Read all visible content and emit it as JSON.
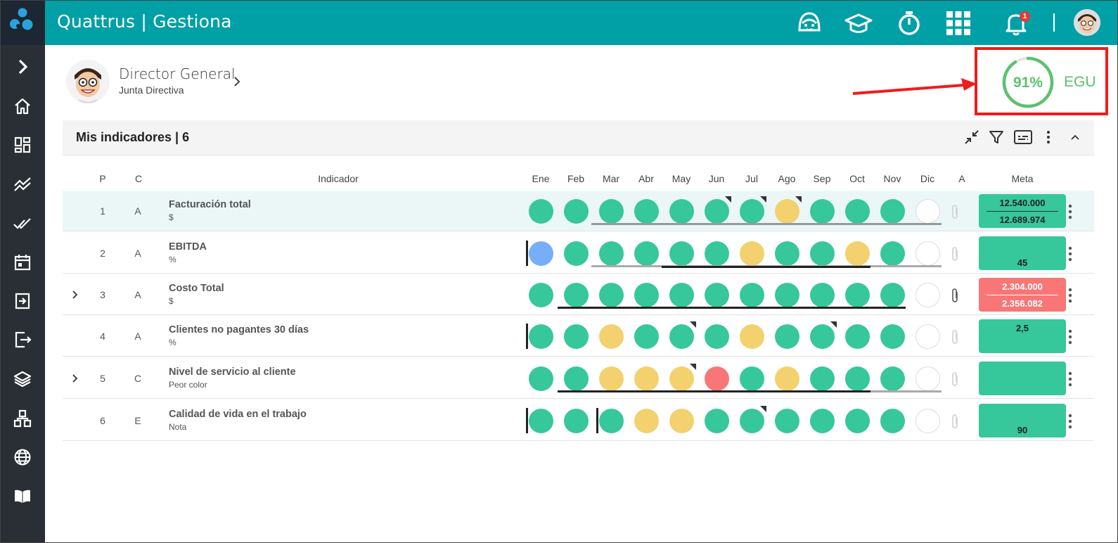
{
  "app": {
    "title": "Quattrus | Gestiona"
  },
  "topbar": {
    "icons": [
      "support-face-icon",
      "graduation-cap-icon",
      "stopwatch-icon",
      "apps-grid-icon",
      "bell-icon",
      "user-avatar"
    ],
    "notification_count": "1"
  },
  "sidebar": {
    "items": [
      "expand-chevron-icon",
      "home-icon",
      "dashboard-icon",
      "trend-icon",
      "double-check-icon",
      "calendar-icon",
      "login-icon",
      "logout-icon",
      "layers-icon",
      "org-chart-icon",
      "globe-icon",
      "book-icon"
    ]
  },
  "user": {
    "name": "Director General",
    "role": "Junta Directiva"
  },
  "score": {
    "percent": "91%",
    "label": "EGU",
    "value": 0.91,
    "color": "#5cc16e"
  },
  "panel": {
    "title": "Mis indicadores | 6"
  },
  "columns": {
    "p": "P",
    "c": "C",
    "indicator": "Indicador",
    "months": [
      "Ene",
      "Feb",
      "Mar",
      "Abr",
      "May",
      "Jun",
      "Jul",
      "Ago",
      "Sep",
      "Oct",
      "Nov",
      "Dic"
    ],
    "a": "A",
    "meta": "Meta"
  },
  "rows": [
    {
      "p": "1",
      "c": "A",
      "name": "Facturación total",
      "unit": "$",
      "meta_top": "12.540.000",
      "meta_bottom": "12.689.974",
      "meta_status": "green",
      "expandable": false
    },
    {
      "p": "2",
      "c": "A",
      "name": "EBITDA",
      "unit": "%",
      "meta_top": "",
      "meta_bottom": "45",
      "meta_status": "green",
      "expandable": false
    },
    {
      "p": "3",
      "c": "A",
      "name": "Costo Total",
      "unit": "$",
      "meta_top": "2.304.000",
      "meta_bottom": "2.356.082",
      "meta_status": "red",
      "expandable": true
    },
    {
      "p": "4",
      "c": "A",
      "name": "Clientes no pagantes 30 días",
      "unit": "%",
      "meta_top": "2,5",
      "meta_bottom": "",
      "meta_status": "green",
      "expandable": false
    },
    {
      "p": "5",
      "c": "C",
      "name": "Nivel de servicio al cliente",
      "unit": "Peor color",
      "meta_top": "",
      "meta_bottom": "",
      "meta_status": "green",
      "expandable": true
    },
    {
      "p": "6",
      "c": "E",
      "name": "Calidad de vida en el trabajo",
      "unit": "Nota",
      "meta_top": "",
      "meta_bottom": "90",
      "meta_status": "green",
      "expandable": false
    }
  ]
}
